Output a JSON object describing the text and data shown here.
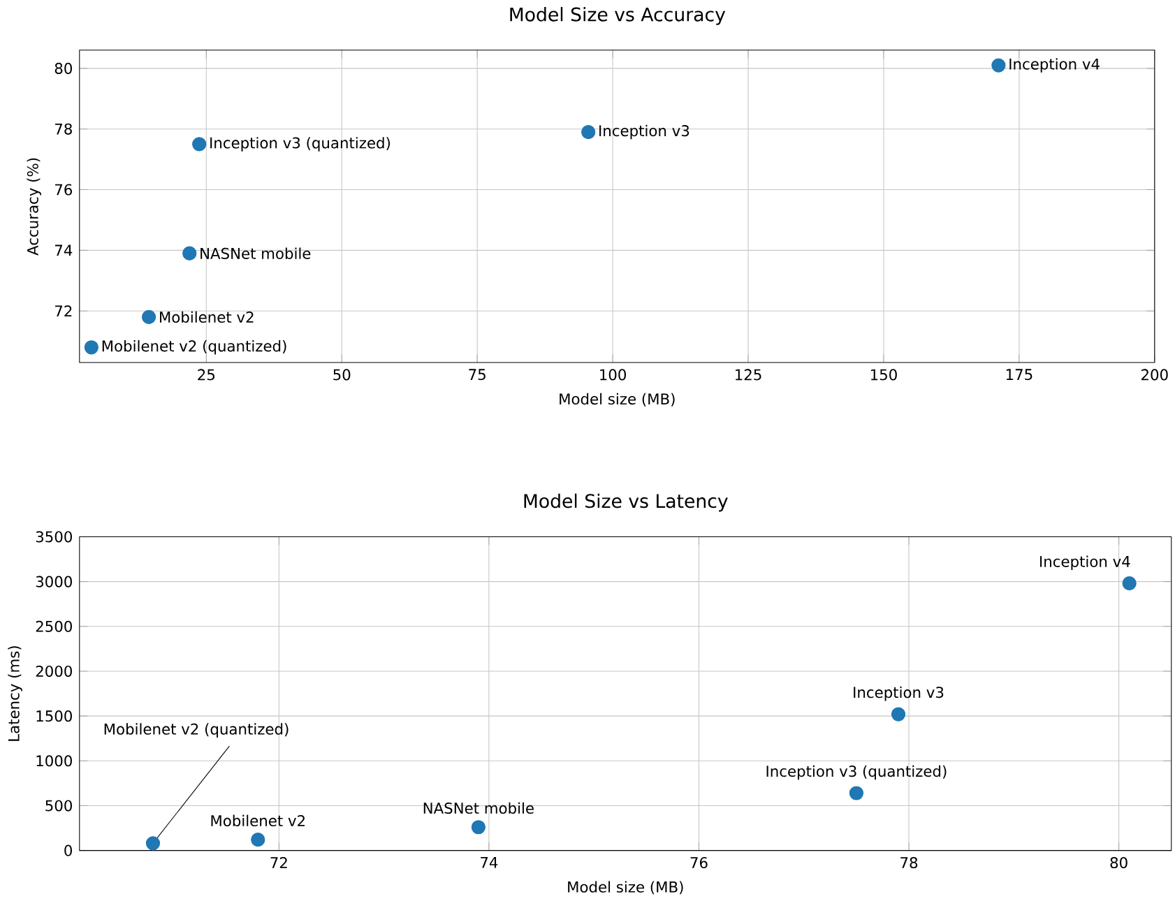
{
  "chart_data": [
    {
      "type": "scatter",
      "title": "Model Size vs Accuracy",
      "xlabel": "Model size (MB)",
      "ylabel": "Accuracy (%)",
      "x": [
        171.2,
        95.5,
        23.7,
        21.9,
        14.4,
        3.8
      ],
      "series": [
        {
          "color": "#1f77b4",
          "values": [
            80.1,
            77.9,
            77.5,
            73.9,
            71.8,
            70.8
          ]
        }
      ],
      "xlim": [
        1.6,
        200
      ],
      "ylim": [
        70.3,
        80.6
      ],
      "xticks": [
        25,
        50,
        75,
        100,
        125,
        150,
        175,
        200
      ],
      "yticks": [
        72,
        74,
        76,
        78,
        80
      ],
      "grid": true,
      "marker": "circle",
      "annotations": [
        {
          "text": "Inception v4",
          "x": 171.2,
          "y": 80.1
        },
        {
          "text": "Inception v3",
          "x": 95.5,
          "y": 77.9
        },
        {
          "text": "Inception v3 (quantized)",
          "x": 23.7,
          "y": 77.5
        },
        {
          "text": "NASNet mobile",
          "x": 21.9,
          "y": 73.9
        },
        {
          "text": "Mobilenet v2",
          "x": 14.4,
          "y": 71.8
        },
        {
          "text": "Mobilenet v2 (quantized)",
          "x": 3.8,
          "y": 70.8
        }
      ]
    },
    {
      "type": "scatter",
      "title": "Model Size vs Latency",
      "xlabel": "Model size (MB)",
      "ylabel": "Latency (ms)",
      "x": [
        70.8,
        71.8,
        73.9,
        77.5,
        77.9,
        80.1
      ],
      "series": [
        {
          "color": "#1f77b4",
          "values": [
            80,
            120,
            260,
            640,
            1520,
            2980
          ]
        }
      ],
      "xlim": [
        70.1,
        80.5
      ],
      "ylim": [
        0,
        3500
      ],
      "xticks": [
        72,
        74,
        76,
        78,
        80
      ],
      "yticks": [
        0,
        500,
        1000,
        1500,
        2000,
        2500,
        3000,
        3500
      ],
      "grid": true,
      "marker": "circle",
      "annotations": [
        {
          "text": "Mobilenet v2 (quantized)",
          "x": 70.8,
          "y": 80
        },
        {
          "text": "Mobilenet v2",
          "x": 71.8,
          "y": 120
        },
        {
          "text": "NASNet mobile",
          "x": 73.9,
          "y": 260
        },
        {
          "text": "Inception v3 (quantized)",
          "x": 77.5,
          "y": 640
        },
        {
          "text": "Inception v3",
          "x": 77.9,
          "y": 1520
        },
        {
          "text": "Inception v4",
          "x": 80.1,
          "y": 2980
        }
      ]
    }
  ]
}
